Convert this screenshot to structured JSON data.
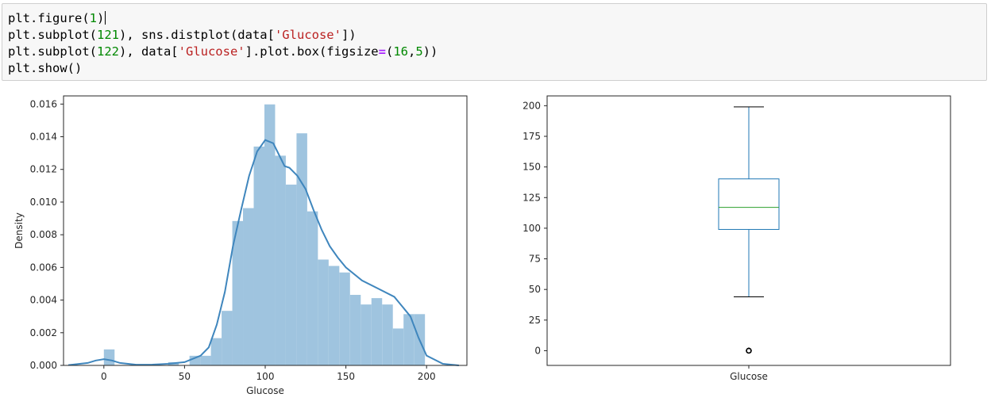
{
  "code_cell": {
    "lines": [
      [
        {
          "t": "plt.figure("
        },
        {
          "t": "1",
          "c": "num"
        },
        {
          "t": ")"
        }
      ],
      [
        {
          "t": "plt.subplot("
        },
        {
          "t": "121",
          "c": "num"
        },
        {
          "t": "), sns.distplot(data["
        },
        {
          "t": "'Glucose'",
          "c": "str"
        },
        {
          "t": "])"
        }
      ],
      [
        {
          "t": "plt.subplot("
        },
        {
          "t": "122",
          "c": "num"
        },
        {
          "t": "), data["
        },
        {
          "t": "'Glucose'",
          "c": "str"
        },
        {
          "t": "].plot.box(figsize"
        },
        {
          "t": "=",
          "c": "op"
        },
        {
          "t": "("
        },
        {
          "t": "16",
          "c": "num"
        },
        {
          "t": ","
        },
        {
          "t": "5",
          "c": "num"
        },
        {
          "t": "))"
        }
      ],
      [
        {
          "t": "plt.show()"
        }
      ]
    ]
  },
  "colors": {
    "hist_fill": "#9fc4df",
    "kde_line": "#3f86bd",
    "box_line": "#1f77b4",
    "median_line": "#2ca02c",
    "axis": "#262626"
  },
  "chart_data": [
    {
      "type": "bar",
      "subtype": "histogram_with_kde",
      "xlabel": "Glucose",
      "ylabel": "Density",
      "xlim": [
        -25,
        225
      ],
      "ylim": [
        0,
        0.0165
      ],
      "xticks": [
        0,
        50,
        100,
        150,
        200
      ],
      "yticks": [
        0.0,
        0.002,
        0.004,
        0.006,
        0.008,
        0.01,
        0.012,
        0.014,
        0.016
      ],
      "ytick_labels": [
        "0.000",
        "0.002",
        "0.004",
        "0.006",
        "0.008",
        "0.010",
        "0.012",
        "0.014",
        "0.016"
      ],
      "bin_width": 6.63,
      "bins": [
        {
          "x0": 0.0,
          "density": 0.00098
        },
        {
          "x0": 39.8,
          "density": 0.0002
        },
        {
          "x0": 53.07,
          "density": 0.00059
        },
        {
          "x0": 59.7,
          "density": 0.00059
        },
        {
          "x0": 66.33,
          "density": 0.00167
        },
        {
          "x0": 72.97,
          "density": 0.00334
        },
        {
          "x0": 79.6,
          "density": 0.00884
        },
        {
          "x0": 86.23,
          "density": 0.00963
        },
        {
          "x0": 92.87,
          "density": 0.0134
        },
        {
          "x0": 99.5,
          "density": 0.01598
        },
        {
          "x0": 106.13,
          "density": 0.01284
        },
        {
          "x0": 112.77,
          "density": 0.01107
        },
        {
          "x0": 119.4,
          "density": 0.01421
        },
        {
          "x0": 126.03,
          "density": 0.00943
        },
        {
          "x0": 132.67,
          "density": 0.00648
        },
        {
          "x0": 139.3,
          "density": 0.00609
        },
        {
          "x0": 145.93,
          "density": 0.00569
        },
        {
          "x0": 152.57,
          "density": 0.00432
        },
        {
          "x0": 159.2,
          "density": 0.00373
        },
        {
          "x0": 165.83,
          "density": 0.00412
        },
        {
          "x0": 172.47,
          "density": 0.00373
        },
        {
          "x0": 179.1,
          "density": 0.00226
        },
        {
          "x0": 185.73,
          "density": 0.00314
        },
        {
          "x0": 192.37,
          "density": 0.00314
        }
      ],
      "kde": {
        "x": [
          -22,
          -10,
          -5,
          0,
          5,
          10,
          20,
          30,
          40,
          50,
          60,
          65,
          70,
          75,
          80,
          85,
          90,
          95,
          100,
          105,
          108,
          112,
          115,
          120,
          125,
          130,
          135,
          140,
          145,
          150,
          160,
          170,
          180,
          190,
          195,
          200,
          210,
          220
        ],
        "y": [
          2e-05,
          0.00015,
          0.0003,
          0.00038,
          0.0003,
          0.00015,
          4e-05,
          5e-05,
          0.0001,
          0.0002,
          0.0006,
          0.0011,
          0.0025,
          0.0045,
          0.0073,
          0.0095,
          0.0116,
          0.0131,
          0.0138,
          0.0136,
          0.013,
          0.0122,
          0.0121,
          0.0116,
          0.0108,
          0.0095,
          0.0083,
          0.0073,
          0.0066,
          0.006,
          0.0052,
          0.0047,
          0.0042,
          0.003,
          0.0017,
          0.0006,
          0.0001,
          0.0
        ]
      }
    },
    {
      "type": "box",
      "categories": [
        "Glucose"
      ],
      "ylim": [
        -12,
        208
      ],
      "yticks": [
        0,
        25,
        50,
        75,
        100,
        125,
        150,
        175,
        200
      ],
      "whisker_low": 44,
      "q1": 99,
      "median": 117,
      "q3": 140.25,
      "whisker_high": 199,
      "outliers": [
        0,
        0,
        0,
        0,
        0
      ]
    }
  ]
}
